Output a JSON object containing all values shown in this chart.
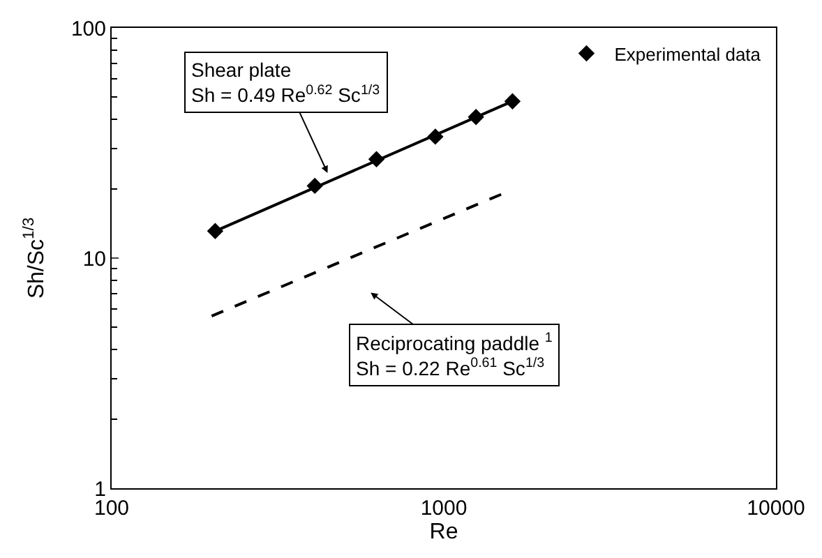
{
  "chart_data": {
    "type": "line",
    "xlabel": "Re",
    "ylabel": "Sh/Sc$^{1/3}$",
    "log": "xy",
    "legend": "top right",
    "xlim": [
      100,
      10000
    ],
    "xticks": [
      100,
      1000,
      10000
    ],
    "ylim": [
      1,
      100
    ],
    "yticks": [
      1,
      10,
      100
    ],
    "series": [
      {
        "name": "Experimental data",
        "type": "scatter",
        "marker": "diamond",
        "color": "#000000",
        "x": [
          205,
          409,
          627,
          943,
          1250,
          1610
        ],
        "values": [
          13.1,
          20.6,
          26.9,
          33.7,
          41,
          48
        ]
      },
      {
        "marker": "none",
        "line_style": "solid",
        "color": "#000000",
        "x": [
          205,
          1610
        ],
        "values": [
          13.1,
          48
        ]
      },
      {
        "marker": "none",
        "line_style": "dashed",
        "color": "#000000",
        "x": [
          200,
          1500
        ],
        "values": [
          5.6,
          19
        ]
      }
    ],
    "annotations": [
      "Shear plate\nSh = 0.49 Re$^{0.62}$ Sc$^{1/3}$",
      "Reciprocating paddle $^{1}$\nSh = 0.22 Re$^{0.61}$ Sc$^{1/3}$"
    ]
  }
}
